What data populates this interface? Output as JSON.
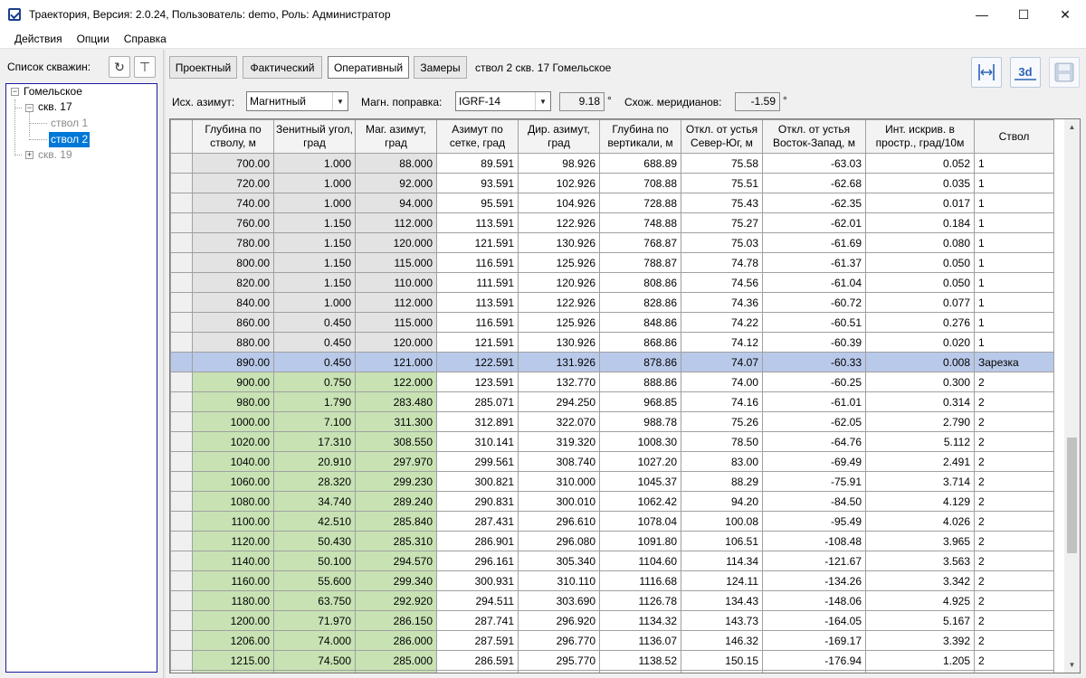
{
  "window": {
    "title": "Траектория, Версия: 2.0.24, Пользователь: demo, Роль: Администратор",
    "minimize": "—",
    "maximize": "☐",
    "close": "✕"
  },
  "menu": [
    "Действия",
    "Опции",
    "Справка"
  ],
  "left": {
    "wells_label": "Список скважин:",
    "refresh_icon": "↻",
    "filter_icon": "⊤",
    "tree": {
      "root": "Гомельское",
      "well17": "скв. 17",
      "bore1": "ствол 1",
      "bore2": "ствол 2",
      "well19": "скв. 19",
      "expand_minus": "−",
      "expand_plus": "+"
    }
  },
  "tabs": [
    "Проектный",
    "Фактический",
    "Оперативный",
    "Замеры"
  ],
  "active_tab": "Оперативный",
  "caption": "ствол 2 скв. 17 Гомельское",
  "toolbar": {
    "threed_label": "3d"
  },
  "params": {
    "azimuth_label": "Исх. азимут:",
    "azimuth_value": "Магнитный",
    "magcorr_label": "Магн. поправка:",
    "magcorr_value": "IGRF-14",
    "magcorr_num": "9.18",
    "meridian_label": "Схож. меридианов:",
    "meridian_num": "-1.59",
    "degree": "°",
    "combo_arrow": "▼"
  },
  "columns": [
    "Глубина по стволу, м",
    "Зенитный угол, град",
    "Маг. азимут, град",
    "Азимут по сетке, град",
    "Дир. азимут, град",
    "Глубина по вертикали, м",
    "Откл. от устья Север-Юг, м",
    "Откл. от устья Восток-Запад, м",
    "Инт. искрив. в простр., град/10м",
    "Ствол"
  ],
  "rows": [
    {
      "style": "gray",
      "cells": [
        "700.00",
        "1.000",
        "88.000",
        "89.591",
        "98.926",
        "688.89",
        "75.58",
        "-63.03",
        "0.052",
        "1"
      ]
    },
    {
      "style": "gray",
      "cells": [
        "720.00",
        "1.000",
        "92.000",
        "93.591",
        "102.926",
        "708.88",
        "75.51",
        "-62.68",
        "0.035",
        "1"
      ]
    },
    {
      "style": "gray",
      "cells": [
        "740.00",
        "1.000",
        "94.000",
        "95.591",
        "104.926",
        "728.88",
        "75.43",
        "-62.35",
        "0.017",
        "1"
      ]
    },
    {
      "style": "gray",
      "cells": [
        "760.00",
        "1.150",
        "112.000",
        "113.591",
        "122.926",
        "748.88",
        "75.27",
        "-62.01",
        "0.184",
        "1"
      ]
    },
    {
      "style": "gray",
      "cells": [
        "780.00",
        "1.150",
        "120.000",
        "121.591",
        "130.926",
        "768.87",
        "75.03",
        "-61.69",
        "0.080",
        "1"
      ]
    },
    {
      "style": "gray",
      "cells": [
        "800.00",
        "1.150",
        "115.000",
        "116.591",
        "125.926",
        "788.87",
        "74.78",
        "-61.37",
        "0.050",
        "1"
      ]
    },
    {
      "style": "gray",
      "cells": [
        "820.00",
        "1.150",
        "110.000",
        "111.591",
        "120.926",
        "808.86",
        "74.56",
        "-61.04",
        "0.050",
        "1"
      ]
    },
    {
      "style": "gray",
      "cells": [
        "840.00",
        "1.000",
        "112.000",
        "113.591",
        "122.926",
        "828.86",
        "74.36",
        "-60.72",
        "0.077",
        "1"
      ]
    },
    {
      "style": "gray",
      "cells": [
        "860.00",
        "0.450",
        "115.000",
        "116.591",
        "125.926",
        "848.86",
        "74.22",
        "-60.51",
        "0.276",
        "1"
      ]
    },
    {
      "style": "gray",
      "cells": [
        "880.00",
        "0.450",
        "120.000",
        "121.591",
        "130.926",
        "868.86",
        "74.12",
        "-60.39",
        "0.020",
        "1"
      ]
    },
    {
      "style": "sel",
      "cells": [
        "890.00",
        "0.450",
        "121.000",
        "122.591",
        "131.926",
        "878.86",
        "74.07",
        "-60.33",
        "0.008",
        "Зарезка"
      ]
    },
    {
      "style": "green",
      "cells": [
        "900.00",
        "0.750",
        "122.000",
        "123.591",
        "132.770",
        "888.86",
        "74.00",
        "-60.25",
        "0.300",
        "2"
      ]
    },
    {
      "style": "green",
      "cells": [
        "980.00",
        "1.790",
        "283.480",
        "285.071",
        "294.250",
        "968.85",
        "74.16",
        "-61.01",
        "0.314",
        "2"
      ]
    },
    {
      "style": "green",
      "cells": [
        "1000.00",
        "7.100",
        "311.300",
        "312.891",
        "322.070",
        "988.78",
        "75.26",
        "-62.05",
        "2.790",
        "2"
      ]
    },
    {
      "style": "green",
      "cells": [
        "1020.00",
        "17.310",
        "308.550",
        "310.141",
        "319.320",
        "1008.30",
        "78.50",
        "-64.76",
        "5.112",
        "2"
      ]
    },
    {
      "style": "green",
      "cells": [
        "1040.00",
        "20.910",
        "297.970",
        "299.561",
        "308.740",
        "1027.20",
        "83.00",
        "-69.49",
        "2.491",
        "2"
      ]
    },
    {
      "style": "green",
      "cells": [
        "1060.00",
        "28.320",
        "299.230",
        "300.821",
        "310.000",
        "1045.37",
        "88.29",
        "-75.91",
        "3.714",
        "2"
      ]
    },
    {
      "style": "green",
      "cells": [
        "1080.00",
        "34.740",
        "289.240",
        "290.831",
        "300.010",
        "1062.42",
        "94.20",
        "-84.50",
        "4.129",
        "2"
      ]
    },
    {
      "style": "green",
      "cells": [
        "1100.00",
        "42.510",
        "285.840",
        "287.431",
        "296.610",
        "1078.04",
        "100.08",
        "-95.49",
        "4.026",
        "2"
      ]
    },
    {
      "style": "green",
      "cells": [
        "1120.00",
        "50.430",
        "285.310",
        "286.901",
        "296.080",
        "1091.80",
        "106.51",
        "-108.48",
        "3.965",
        "2"
      ]
    },
    {
      "style": "green",
      "cells": [
        "1140.00",
        "50.100",
        "294.570",
        "296.161",
        "305.340",
        "1104.60",
        "114.34",
        "-121.67",
        "3.563",
        "2"
      ]
    },
    {
      "style": "green",
      "cells": [
        "1160.00",
        "55.600",
        "299.340",
        "300.931",
        "310.110",
        "1116.68",
        "124.11",
        "-134.26",
        "3.342",
        "2"
      ]
    },
    {
      "style": "green",
      "cells": [
        "1180.00",
        "63.750",
        "292.920",
        "294.511",
        "303.690",
        "1126.78",
        "134.43",
        "-148.06",
        "4.925",
        "2"
      ]
    },
    {
      "style": "green",
      "cells": [
        "1200.00",
        "71.970",
        "286.150",
        "287.741",
        "296.920",
        "1134.32",
        "143.73",
        "-164.05",
        "5.167",
        "2"
      ]
    },
    {
      "style": "green",
      "cells": [
        "1206.00",
        "74.000",
        "286.000",
        "287.591",
        "296.770",
        "1136.07",
        "146.32",
        "-169.17",
        "3.392",
        "2"
      ]
    },
    {
      "style": "green",
      "cells": [
        "1215.00",
        "74.500",
        "285.000",
        "286.591",
        "295.770",
        "1138.52",
        "150.15",
        "-176.94",
        "1.205",
        "2"
      ]
    },
    {
      "style": "green",
      "cells": [
        "",
        "",
        "",
        "",
        "",
        "",
        "",
        "",
        "",
        ""
      ]
    }
  ]
}
